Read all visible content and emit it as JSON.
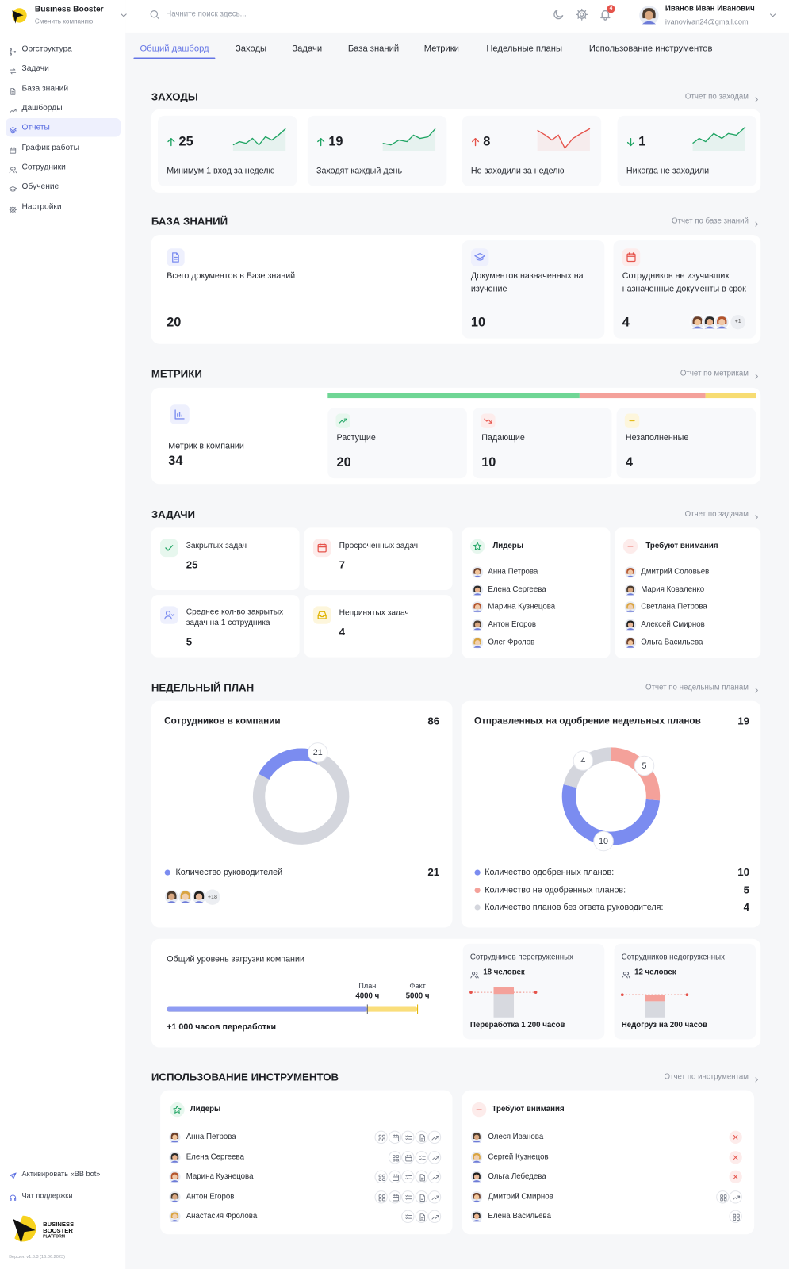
{
  "sidebar": {
    "brand": "Business Booster",
    "brand_action": "Сменить компанию",
    "menu": [
      "Оргструктура",
      "Задачи",
      "База знаний",
      "Дашборды",
      "Отчеты",
      "График работы",
      "Сотрудники",
      "Обучение",
      "Настройки"
    ],
    "active_menu": 4,
    "bottom_links": [
      "Активировать «BB bot»",
      "Чат поддержки"
    ],
    "logo_lines": [
      "BUSINESS",
      "BOOSTER",
      "PLATFORM"
    ],
    "version": "Версия: v1.8.3 (16.06.2023)"
  },
  "header": {
    "search_placeholder": "Начните поиск здесь...",
    "notifications": 4,
    "user_name": "Иванов Иван Иванович",
    "user_email": "ivanovivan24@gmail.com"
  },
  "tabs": [
    "Общий дашборд",
    "Заходы",
    "Задачи",
    "База знаний",
    "Метрики",
    "Недельные планы",
    "Использование инструментов"
  ],
  "active_tab": 0,
  "visits": {
    "title": "ЗАХОДЫ",
    "report_link": "Отчет по заходам",
    "cards": [
      {
        "value": 25,
        "label": "Минимум 1 вход за неделю",
        "arrow": "up",
        "color": "#1fa463"
      },
      {
        "value": 19,
        "label": "Заходят каждый день",
        "arrow": "up",
        "color": "#1fa463"
      },
      {
        "value": 8,
        "label": "Не заходили за неделю",
        "arrow": "up",
        "color": "#e5534b"
      },
      {
        "value": 1,
        "label": "Никогда не заходили",
        "arrow": "down",
        "color": "#1fa463"
      }
    ]
  },
  "knowledge_base": {
    "title": "БАЗА ЗНАНИЙ",
    "report_link": "Отчет по базе знаний",
    "cards": [
      {
        "label": "Всего документов в Базе знаний",
        "value": 20
      },
      {
        "label": "Документов назначенных на изучение",
        "value": 10
      },
      {
        "label": "Сотрудников не изучивших назначенные документы в срок",
        "value": 4,
        "more_people": "+1"
      }
    ]
  },
  "metrics": {
    "title": "МЕТРИКИ",
    "report_link": "Отчет по метрикам",
    "total": {
      "label": "Метрик в компании",
      "value": 34
    },
    "groups": [
      {
        "label": "Растущие",
        "value": 20,
        "color": "#6fd695"
      },
      {
        "label": "Падающие",
        "value": 10,
        "color": "#f4a19a"
      },
      {
        "label": "Незаполненные",
        "value": 4,
        "color": "#f7dc72"
      }
    ]
  },
  "tasks": {
    "title": "ЗАДАЧИ",
    "report_link": "Отчет по задачам",
    "cards": [
      {
        "label": "Закрытых задач",
        "value": 25
      },
      {
        "label": "Просроченных задач",
        "value": 7
      },
      {
        "label": "Среднее кол-во закрытых задач на 1 сотрудника",
        "value": 5
      },
      {
        "label": "Непринятых задач",
        "value": 4
      }
    ],
    "leaders": {
      "title": "Лидеры",
      "people": [
        "Анна Петрова",
        "Елена Сергеева",
        "Марина Кузнецова",
        "Антон Егоров",
        "Олег Фролов"
      ]
    },
    "attention": {
      "title": "Требуют внимания",
      "people": [
        "Дмитрий Соловьев",
        "Мария Коваленко",
        "Светлана Петрова",
        "Алексей Смирнов",
        "Ольга Васильева"
      ]
    }
  },
  "weekly_plan": {
    "title": "НЕДЕЛЬНЫЙ ПЛАН",
    "report_link": "Отчет по недельным планам",
    "employees": {
      "title": "Сотрудников в компании",
      "value": 86,
      "color": "#d4d6dd",
      "managers": {
        "label": "Количество руководителей",
        "value": 21,
        "color": "#7b8cf0"
      },
      "more_people": "+18"
    },
    "approvals": {
      "title": "Отправленных на одобрение недельных планов",
      "value": 19,
      "series": [
        {
          "name": "Количество одобренных планов:",
          "value": 10,
          "color": "#7b8cf0"
        },
        {
          "name": "Количество не одобренных планов:",
          "value": 5,
          "color": "#f4a19a"
        },
        {
          "name": "Количество планов без ответа руководителя:",
          "value": 4,
          "color": "#d4d6dd"
        }
      ]
    },
    "workload": {
      "title": "Общий уровень загрузки компании",
      "labels": [
        "План",
        "Факт"
      ],
      "values": [
        4000,
        5000
      ],
      "value_labels": [
        "4000 ч",
        "5000 ч"
      ],
      "colors": [
        "#8f9cf3",
        "#fade7a"
      ],
      "summary": "+1 000 часов переработки"
    },
    "overloaded": {
      "title": "Сотрудников перегруженных",
      "count": "18 человек",
      "note": "Переработка 1 200 часов"
    },
    "underloaded": {
      "title": "Сотрудников недогруженных",
      "count": "12 человек",
      "note": "Недогруз на 200 часов"
    }
  },
  "tools": {
    "title": "ИСПОЛЬЗОВАНИЕ ИНСТРУМЕНТОВ",
    "report_link": "Отчет по инструментам",
    "leaders": {
      "title": "Лидеры",
      "people": [
        {
          "name": "Анна Петрова",
          "tools": [
            "grid",
            "calendar",
            "tasks",
            "docs",
            "metrics"
          ]
        },
        {
          "name": "Елена Сергеева",
          "tools": [
            "grid",
            "calendar",
            "tasks",
            "metrics"
          ]
        },
        {
          "name": "Марина Кузнецова",
          "tools": [
            "grid",
            "calendar",
            "tasks",
            "docs",
            "metrics"
          ]
        },
        {
          "name": "Антон Егоров",
          "tools": [
            "grid",
            "calendar",
            "tasks",
            "docs",
            "metrics"
          ]
        },
        {
          "name": "Анастасия Фролова",
          "tools": [
            "tasks",
            "docs",
            "metrics"
          ]
        }
      ]
    },
    "attention": {
      "title": "Требуют внимания",
      "people": [
        {
          "name": "Олеся Иванова",
          "tools": [
            "none"
          ]
        },
        {
          "name": "Сергей Кузнецов",
          "tools": [
            "none"
          ]
        },
        {
          "name": "Ольга Лебедева",
          "tools": [
            "none"
          ]
        },
        {
          "name": "Дмитрий Смирнов",
          "tools": [
            "grid",
            "metrics"
          ]
        },
        {
          "name": "Елена Васильева",
          "tools": [
            "grid"
          ]
        }
      ]
    }
  }
}
